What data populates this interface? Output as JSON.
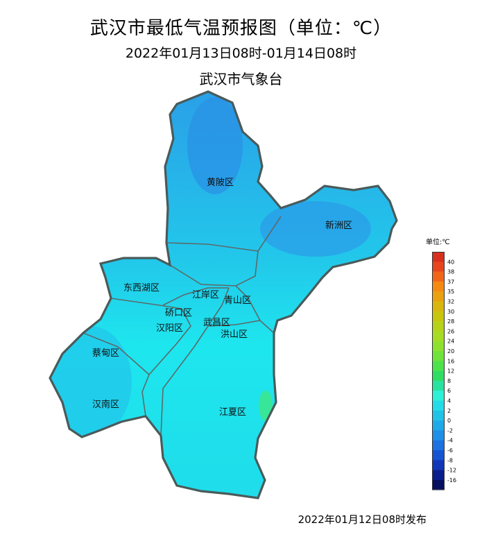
{
  "header": {
    "title": "武汉市最低气温预报图（单位：℃）",
    "period": "2022年01月13日08时-01月14日08时",
    "agency": "武汉市气象台"
  },
  "footer": {
    "issued": "2022年01月12日08时发布"
  },
  "districts": [
    "黄陂区",
    "新洲区",
    "东西湖区",
    "江岸区",
    "硚口区",
    "青山区",
    "汉阳区",
    "武昌区",
    "洪山区",
    "蔡甸区",
    "汉南区",
    "江夏区"
  ],
  "legend": {
    "title": "单位:℃",
    "ticks": [
      "40",
      "38",
      "37",
      "35",
      "32",
      "30",
      "28",
      "26",
      "24",
      "20",
      "16",
      "12",
      "8",
      "6",
      "4",
      "2",
      "0",
      "-2",
      "-4",
      "-6",
      "-8",
      "-12",
      "-16"
    ],
    "colors": [
      "#d7301f",
      "#e8451d",
      "#f2661a",
      "#f58a12",
      "#e9a10f",
      "#d9b60e",
      "#c7c60d",
      "#b7d21a",
      "#a6dc24",
      "#8fe12f",
      "#6fe33a",
      "#4ee24a",
      "#2fdd63",
      "#28e3a0",
      "#2ef0d6",
      "#24dce8",
      "#1fc3e6",
      "#1eaae8",
      "#1e8fe6",
      "#1b72e0",
      "#1555d4",
      "#1136b8",
      "#0b1f8c",
      "#061060"
    ]
  },
  "map_colors": {
    "north": "#2a9ee8",
    "mid": "#22c8ea",
    "south": "#1ee6ee",
    "warm": "#38e69a",
    "border": "#4a5a5a"
  }
}
